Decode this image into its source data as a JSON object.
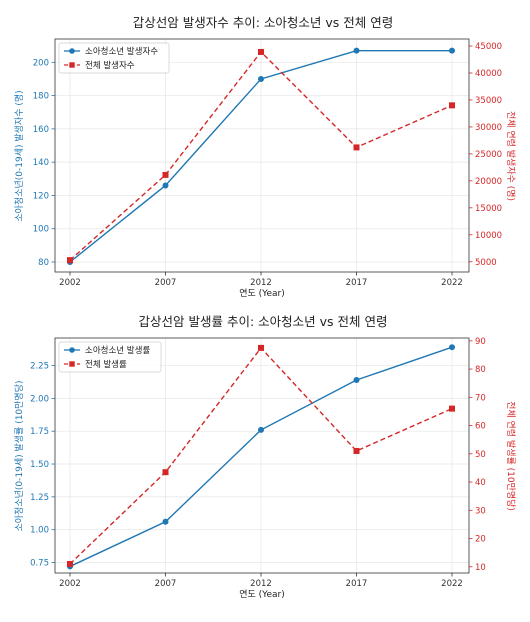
{
  "chart_data": [
    {
      "type": "line",
      "title": "갑상선암 발생자수 추이: 소아청소년 vs 전체 연령",
      "xlabel": "연도 (Year)",
      "ylabel_left": "소아청소년(0-19세) 발생자수 (명)",
      "ylabel_right": "전체 연령 발생자수 (명)",
      "x": [
        2002,
        2007,
        2012,
        2017,
        2022
      ],
      "x_ticks": [
        "2002",
        "2007",
        "2012",
        "2017",
        "2022"
      ],
      "y_left_ticks": [
        "80",
        "100",
        "120",
        "140",
        "160",
        "180",
        "200"
      ],
      "y_left_range": [
        74,
        214
      ],
      "y_right_ticks": [
        "5000",
        "10000",
        "15000",
        "20000",
        "25000",
        "30000",
        "35000",
        "40000",
        "45000"
      ],
      "y_right_range": [
        3100,
        46300
      ],
      "grid": true,
      "legend_position": "top-left",
      "series": [
        {
          "name": "소아청소년 발생자수",
          "axis": "left",
          "color": "#1f77b4",
          "style": "solid",
          "marker": "circle",
          "values": [
            80,
            126,
            190,
            207,
            207
          ]
        },
        {
          "name": "전체 발생자수",
          "axis": "right",
          "color": "#d62728",
          "style": "dashed",
          "marker": "square",
          "values": [
            5300,
            21100,
            43900,
            26200,
            34000
          ]
        }
      ]
    },
    {
      "type": "line",
      "title": "갑상선암 발생률 추이: 소아청소년 vs 전체 연령",
      "xlabel": "연도 (Year)",
      "ylabel_left": "소아청소년(0-19세) 발생률 (10만명당)",
      "ylabel_right": "전체 연령 발생률 (10만명당)",
      "x": [
        2002,
        2007,
        2012,
        2017,
        2022
      ],
      "x_ticks": [
        "2002",
        "2007",
        "2012",
        "2017",
        "2022"
      ],
      "y_left_ticks": [
        "0.75",
        "1.00",
        "1.25",
        "1.50",
        "1.75",
        "2.00",
        "2.25"
      ],
      "y_left_range": [
        0.67,
        2.46
      ],
      "y_right_ticks": [
        "10",
        "20",
        "30",
        "40",
        "50",
        "60",
        "70",
        "80",
        "90"
      ],
      "y_right_range": [
        7.8,
        91
      ],
      "grid": true,
      "legend_position": "top-left",
      "series": [
        {
          "name": "소아청소년 발생률",
          "axis": "left",
          "color": "#1f77b4",
          "style": "solid",
          "marker": "circle",
          "values": [
            0.72,
            1.06,
            1.76,
            2.14,
            2.39
          ]
        },
        {
          "name": "전체 발생률",
          "axis": "right",
          "color": "#d62728",
          "style": "dashed",
          "marker": "square",
          "values": [
            11,
            43.5,
            87.5,
            51,
            66
          ]
        }
      ]
    }
  ]
}
